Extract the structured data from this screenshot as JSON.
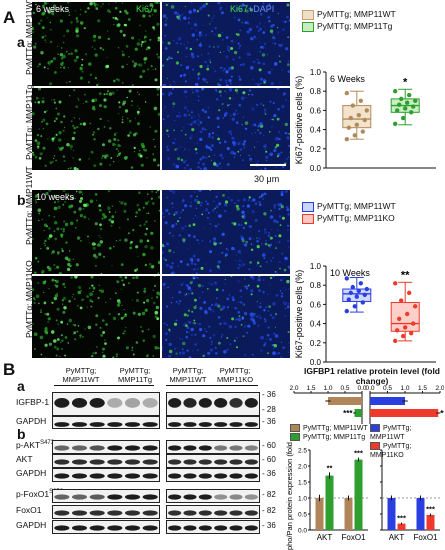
{
  "panels": {
    "A": "A",
    "a": "a",
    "b": "b",
    "B": "B",
    "Ba": "a",
    "Bb": "b"
  },
  "micro_top": {
    "time": "6 weeks",
    "ch1": "Ki67",
    "ch2_a": "Ki67",
    "ch2_b": "+DAPI",
    "row1": "PyMTTg; MMP11WT",
    "row2": "PyMTTg; MMP11Tg",
    "scale": "30 μm"
  },
  "micro_bottom": {
    "time": "10 weeks",
    "row1": "PyMTTg; MMP11WT",
    "row2": "PyMTTg; MMP11KO"
  },
  "blots": {
    "groups": [
      "PyMTTg; MMP11WT",
      "PyMTTg; MMP11Tg",
      "PyMTTg; MMP11WT",
      "PyMTTg; MMP11KO"
    ],
    "rows_a": [
      "IGFBP-1",
      "GAPDH"
    ],
    "rows_b": [
      "p-AKTS473",
      "AKT",
      "GAPDH",
      "p-FoxO1S256",
      "FoxO1",
      "GAPDH"
    ],
    "mw_a": [
      "36",
      "28",
      "36"
    ],
    "mw_b": [
      "60",
      "60",
      "36",
      "82",
      "82",
      "36"
    ]
  },
  "colors": {
    "wt_tan": "#c8a070",
    "tg_green": "#2e9e2e",
    "wt_blue": "#2b3fe0",
    "ko_red": "#ee3a2c"
  },
  "chart_data": [
    {
      "type": "box",
      "title": "6 Weeks",
      "ylabel": "Ki67-positive cells (%)",
      "ylim": [
        0.0,
        1.0
      ],
      "yticks": [
        "0.0",
        "0.2",
        "0.4",
        "0.6",
        "0.8",
        "1.0"
      ],
      "legend": [
        "PyMTTg; MMP11WT",
        "PyMTTg; MMP11Tg"
      ],
      "annotation": "*",
      "series": [
        {
          "name": "PyMTTg; MMP11WT",
          "min": 0.3,
          "q1": 0.42,
          "median": 0.51,
          "q3": 0.65,
          "max": 0.8,
          "points": [
            0.3,
            0.34,
            0.38,
            0.42,
            0.45,
            0.5,
            0.52,
            0.55,
            0.6,
            0.65,
            0.7,
            0.78
          ]
        },
        {
          "name": "PyMTTg; MMP11Tg",
          "min": 0.45,
          "q1": 0.58,
          "median": 0.65,
          "q3": 0.72,
          "max": 0.82,
          "points": [
            0.46,
            0.52,
            0.58,
            0.6,
            0.62,
            0.64,
            0.66,
            0.68,
            0.7,
            0.72,
            0.76,
            0.8
          ]
        }
      ]
    },
    {
      "type": "box",
      "title": "10 Weeks",
      "ylabel": "Ki67-positive cells (%)",
      "ylim": [
        0.0,
        1.0
      ],
      "yticks": [
        "0.0",
        "0.2",
        "0.4",
        "0.6",
        "0.8",
        "1.0"
      ],
      "legend": [
        "PyMTTg; MMP11WT",
        "PyMTTg; MMP11KO"
      ],
      "annotation": "**",
      "series": [
        {
          "name": "PyMTTg; MMP11WT",
          "min": 0.52,
          "q1": 0.63,
          "median": 0.71,
          "q3": 0.76,
          "max": 0.88,
          "points": [
            0.53,
            0.58,
            0.62,
            0.65,
            0.68,
            0.7,
            0.72,
            0.74,
            0.76,
            0.78,
            0.82,
            0.87
          ]
        },
        {
          "name": "PyMTTg; MMP11KO",
          "min": 0.22,
          "q1": 0.32,
          "median": 0.4,
          "q3": 0.62,
          "max": 0.83,
          "points": [
            0.22,
            0.27,
            0.3,
            0.33,
            0.36,
            0.4,
            0.45,
            0.5,
            0.58,
            0.64,
            0.72,
            0.82
          ]
        }
      ]
    },
    {
      "type": "bar",
      "orientation": "horizontal",
      "title": "IGFBP1 relative protein level (fold change)",
      "xlim": [
        0.0,
        2.0
      ],
      "xticks": [
        "0.0",
        "0.5",
        "1.0",
        "1.5",
        "2.0"
      ],
      "left": {
        "legend": [
          "PyMTTg; MMP11WT",
          "PyMTTg; MMP11Tg"
        ],
        "series": [
          {
            "name": "PyMTTg; MMP11WT",
            "value": 1.0,
            "error": 0.08
          },
          {
            "name": "PyMTTg; MMP11Tg",
            "value": 0.22,
            "error": 0.04,
            "annotation": "***"
          }
        ]
      },
      "right": {
        "legend": [
          "PyMTTg; MMP11WT",
          "PyMTTg; MMP11KO"
        ],
        "series": [
          {
            "name": "PyMTTg; MMP11WT",
            "value": 1.0,
            "error": 0.08
          },
          {
            "name": "PyMTTg; MMP11KO",
            "value": 1.95,
            "error": 0.06,
            "annotation": "***"
          }
        ]
      }
    },
    {
      "type": "bar",
      "ylabel": "Phospho/Pan protein expression (fold change)",
      "ylim": [
        0.0,
        2.5
      ],
      "yticks": [
        "0.0",
        "0.5",
        "1.0",
        "1.5",
        "2.0",
        "2.5"
      ],
      "categories": [
        "AKT",
        "FoxO1"
      ],
      "left": {
        "series": [
          {
            "name": "PyMTTg; MMP11WT",
            "values": [
              1.0,
              1.0
            ],
            "errors": [
              0.1,
              0.08
            ],
            "annotations": [
              "",
              ""
            ]
          },
          {
            "name": "PyMTTg; MMP11Tg",
            "values": [
              1.7,
              2.2
            ],
            "errors": [
              0.1,
              0.06
            ],
            "annotations": [
              "**",
              "***"
            ]
          }
        ]
      },
      "right": {
        "series": [
          {
            "name": "PyMTTg; MMP11WT",
            "values": [
              1.0,
              1.0
            ],
            "errors": [
              0.08,
              0.08
            ],
            "annotations": [
              "",
              ""
            ]
          },
          {
            "name": "PyMTTg; MMP11KO",
            "values": [
              0.2,
              0.47
            ],
            "errors": [
              0.03,
              0.04
            ],
            "annotations": [
              "***",
              "***"
            ]
          }
        ]
      }
    }
  ]
}
